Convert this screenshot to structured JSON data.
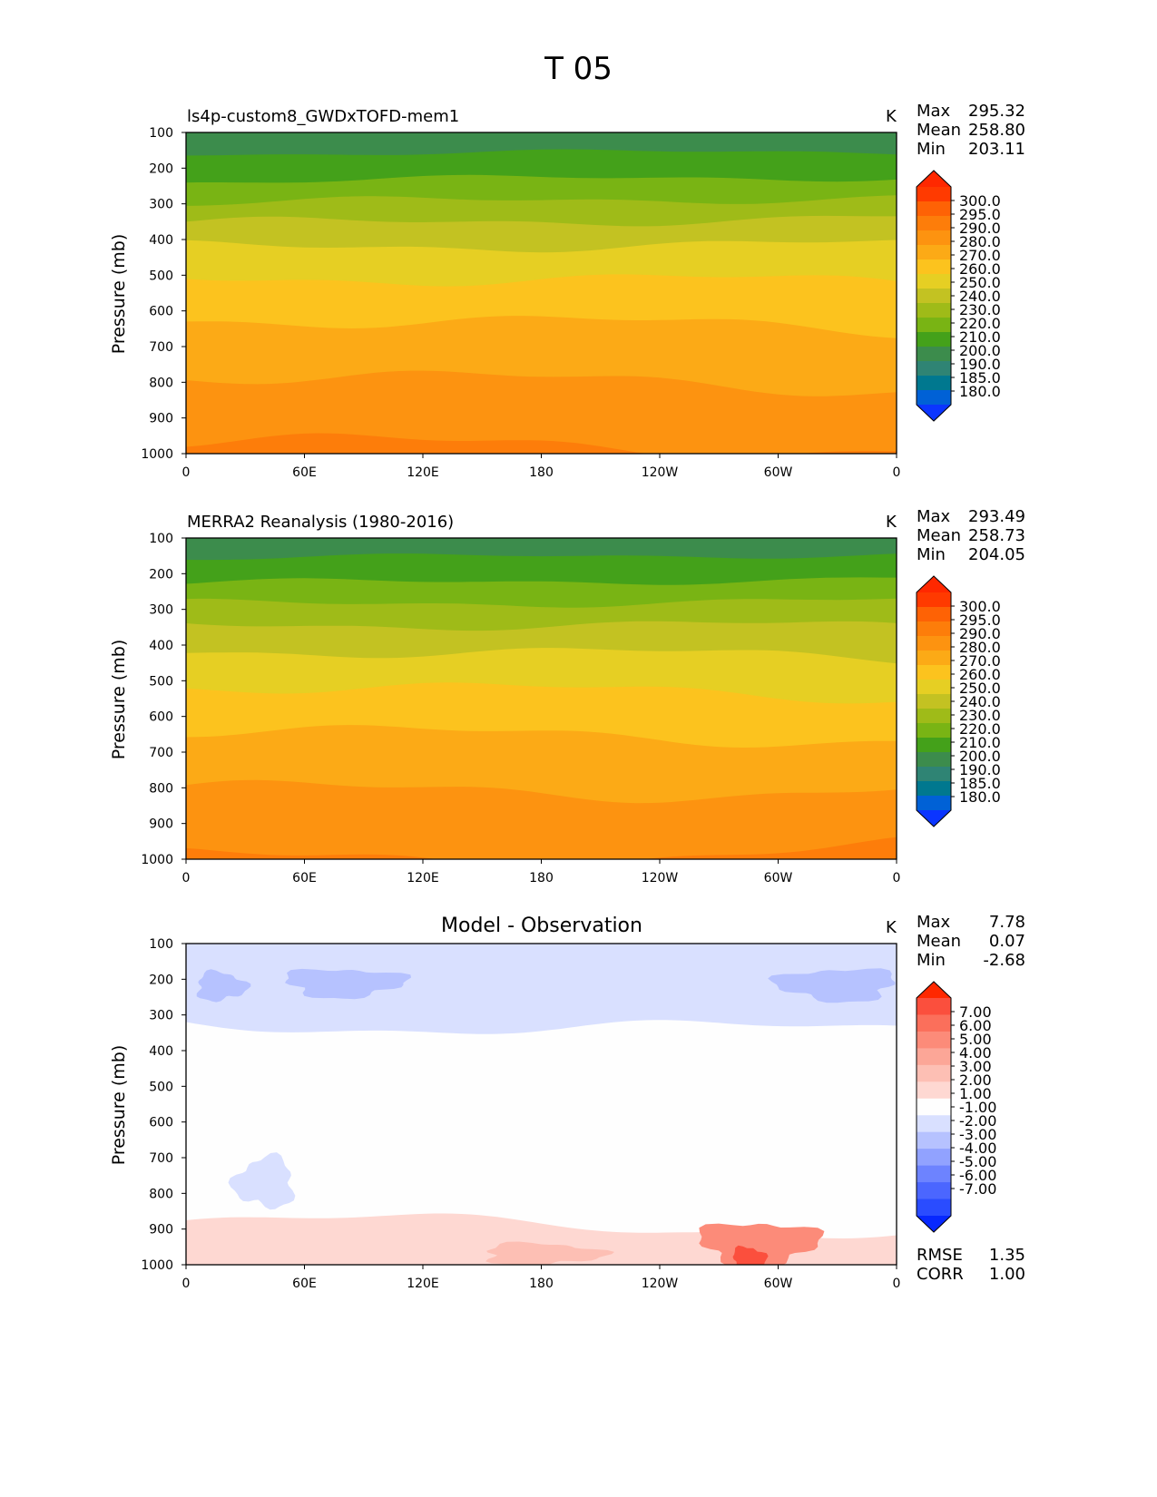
{
  "figure": {
    "title": "T 05"
  },
  "colors": {
    "abs_levels": [
      "#0b35ff",
      "#0061d6",
      "#00788f",
      "#2f8474",
      "#3c8c4c",
      "#44a11a",
      "#79b414",
      "#9fbb18",
      "#c3c222",
      "#e6cf23",
      "#fcc31e",
      "#fcaa16",
      "#fd9310",
      "#fd7d0a",
      "#fe6205",
      "#ff3a00",
      "#ff2800"
    ],
    "diff_levels": [
      "#0728ff",
      "#2a4cff",
      "#4b66ff",
      "#6d83ff",
      "#91a2ff",
      "#b6c2ff",
      "#d9e0ff",
      "#fefefe",
      "#fed8d2",
      "#fdbfb4",
      "#fca697",
      "#fc8b79",
      "#fb6f5b",
      "#fb4f3d",
      "#ff2800"
    ]
  },
  "panels": [
    {
      "id": "model",
      "title": "ls4p-custom8_GWDxTOFD-mem1",
      "units": "K",
      "stats": [
        {
          "name": "Max",
          "value": "295.32"
        },
        {
          "name": "Mean",
          "value": "258.80"
        },
        {
          "name": "Min",
          "value": "203.11"
        }
      ]
    },
    {
      "id": "obs",
      "title": "MERRA2 Reanalysis (1980-2016)",
      "units": "K",
      "stats": [
        {
          "name": "Max",
          "value": "293.49"
        },
        {
          "name": "Mean",
          "value": "258.73"
        },
        {
          "name": "Min",
          "value": "204.05"
        }
      ]
    },
    {
      "id": "diff",
      "title": "Model - Observation",
      "units": "K",
      "stats": [
        {
          "name": "Max",
          "value": "7.78"
        },
        {
          "name": "Mean",
          "value": "0.07"
        },
        {
          "name": "Min",
          "value": "-2.68"
        }
      ],
      "extra_stats": [
        {
          "name": "RMSE",
          "value": "1.35"
        },
        {
          "name": "CORR",
          "value": "1.00"
        }
      ]
    }
  ],
  "chart_data": [
    {
      "type": "heatmap",
      "title": "ls4p-custom8_GWDxTOFD-mem1",
      "ylabel": "Pressure (mb)",
      "xlabel": "",
      "x_ticks": [
        "0",
        "60E",
        "120E",
        "180",
        "120W",
        "60W",
        "0"
      ],
      "y_ticks": [
        "100",
        "200",
        "300",
        "400",
        "500",
        "600",
        "700",
        "800",
        "900",
        "1000"
      ],
      "ylim": [
        1000,
        100
      ],
      "units": "K",
      "colorbar_labels": [
        "300.0",
        "295.0",
        "290.0",
        "280.0",
        "270.0",
        "260.0",
        "250.0",
        "240.0",
        "230.0",
        "220.0",
        "210.0",
        "200.0",
        "190.0",
        "185.0",
        "180.0"
      ],
      "band_lower_bounds": [
        {
          "p": 100,
          "level": 4
        },
        {
          "p": 150,
          "level": 5
        },
        {
          "p": 225,
          "level": 6
        },
        {
          "p": 290,
          "level": 7
        },
        {
          "p": 355,
          "level": 8
        },
        {
          "p": 430,
          "level": 9
        },
        {
          "p": 525,
          "level": 10
        },
        {
          "p": 640,
          "level": 11
        },
        {
          "p": 790,
          "level": 12
        },
        {
          "p": 960,
          "level": 13
        }
      ]
    },
    {
      "type": "heatmap",
      "title": "MERRA2 Reanalysis (1980-2016)",
      "ylabel": "Pressure (mb)",
      "xlabel": "",
      "x_ticks": [
        "0",
        "60E",
        "120E",
        "180",
        "120W",
        "60W",
        "0"
      ],
      "y_ticks": [
        "100",
        "200",
        "300",
        "400",
        "500",
        "600",
        "700",
        "800",
        "900",
        "1000"
      ],
      "ylim": [
        1000,
        100
      ],
      "units": "K",
      "colorbar_labels": [
        "300.0",
        "295.0",
        "290.0",
        "280.0",
        "270.0",
        "260.0",
        "250.0",
        "240.0",
        "230.0",
        "220.0",
        "210.0",
        "200.0",
        "190.0",
        "185.0",
        "180.0"
      ],
      "band_lower_bounds": [
        {
          "p": 100,
          "level": 4
        },
        {
          "p": 150,
          "level": 5
        },
        {
          "p": 225,
          "level": 6
        },
        {
          "p": 290,
          "level": 7
        },
        {
          "p": 355,
          "level": 8
        },
        {
          "p": 430,
          "level": 9
        },
        {
          "p": 525,
          "level": 10
        },
        {
          "p": 640,
          "level": 11
        },
        {
          "p": 790,
          "level": 12
        },
        {
          "p": 975,
          "level": 13
        }
      ]
    },
    {
      "type": "heatmap",
      "title": "Model - Observation",
      "ylabel": "Pressure (mb)",
      "xlabel": "",
      "x_ticks": [
        "0",
        "60E",
        "120E",
        "180",
        "120W",
        "60W",
        "0"
      ],
      "y_ticks": [
        "100",
        "200",
        "300",
        "400",
        "500",
        "600",
        "700",
        "800",
        "900",
        "1000"
      ],
      "ylim": [
        1000,
        100
      ],
      "units": "K",
      "colorbar_labels": [
        "7.00",
        "6.00",
        "5.00",
        "4.00",
        "3.00",
        "2.00",
        "1.00",
        "-1.00",
        "-2.00",
        "-3.00",
        "-4.00",
        "-5.00",
        "-6.00",
        "-7.00"
      ],
      "regions": [
        {
          "value_range": [
            -2,
            -1
          ],
          "lon": [
            0,
            360
          ],
          "p": [
            100,
            320
          ]
        },
        {
          "value_range": [
            -3,
            -2
          ],
          "lon": [
            5,
            30
          ],
          "p": [
            180,
            260
          ]
        },
        {
          "value_range": [
            -3,
            -2
          ],
          "lon": [
            50,
            110
          ],
          "p": [
            170,
            250
          ]
        },
        {
          "value_range": [
            -3,
            -2
          ],
          "lon": [
            300,
            360
          ],
          "p": [
            170,
            260
          ]
        },
        {
          "value_range": [
            -2,
            -1
          ],
          "lon": [
            25,
            55
          ],
          "p": [
            700,
            840
          ]
        },
        {
          "value_range": [
            1,
            2
          ],
          "lon": [
            0,
            360
          ],
          "p": [
            900,
            1000
          ]
        },
        {
          "value_range": [
            2,
            4
          ],
          "lon": [
            150,
            210
          ],
          "p": [
            940,
            1000
          ]
        },
        {
          "value_range": [
            3,
            7
          ],
          "lon": [
            260,
            320
          ],
          "p": [
            880,
            1000
          ]
        }
      ]
    }
  ]
}
